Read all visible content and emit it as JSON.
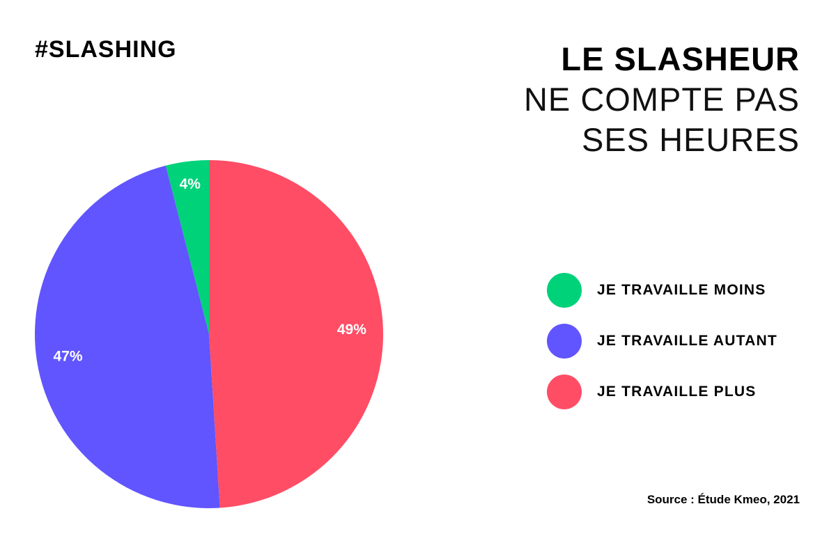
{
  "header": {
    "tag": "#SLASHING",
    "title_bold": "LE SLASHEUR",
    "title_light_1": "NE COMPTE PAS",
    "title_light_2": "SES HEURES"
  },
  "chart_data": {
    "type": "pie",
    "title": "LE SLASHEUR NE COMPTE PAS SES HEURES",
    "slices": [
      {
        "label": "JE TRAVAILLE MOINS",
        "value": 4,
        "value_label": "4%",
        "color": "#00d27a"
      },
      {
        "label": "JE TRAVAILLE AUTANT",
        "value": 47,
        "value_label": "47%",
        "color": "#6155ff"
      },
      {
        "label": "JE TRAVAILLE PLUS",
        "value": 49,
        "value_label": "49%",
        "color": "#ff4d65"
      }
    ],
    "legend_position": "right"
  },
  "legend": {
    "items": [
      {
        "label": "JE TRAVAILLE MOINS",
        "color": "#00d27a"
      },
      {
        "label": "JE TRAVAILLE AUTANT",
        "color": "#6155ff"
      },
      {
        "label": "JE TRAVAILLE PLUS",
        "color": "#ff4d65"
      }
    ]
  },
  "footer": {
    "source": "Source : Étude Kmeo, 2021"
  }
}
